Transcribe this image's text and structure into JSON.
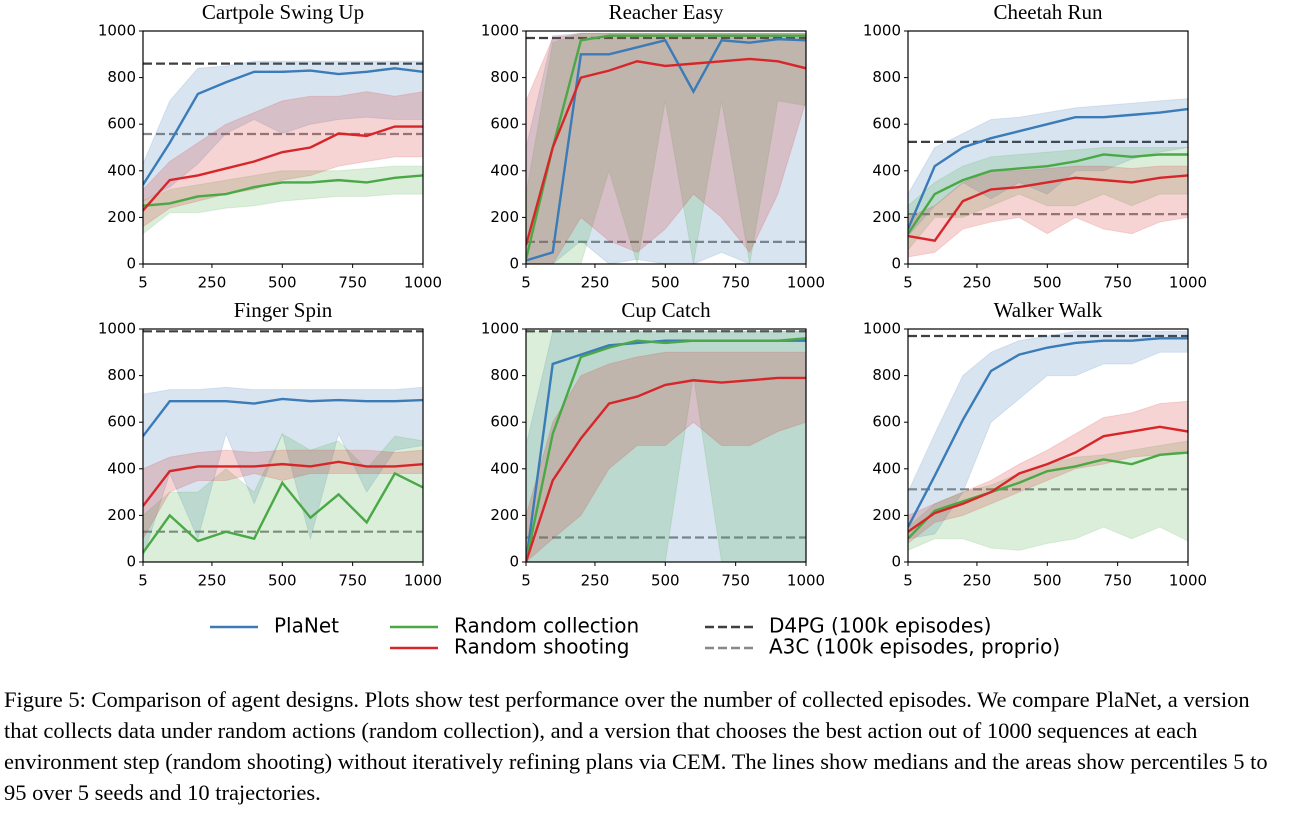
{
  "chart_data": [
    {
      "type": "line",
      "title": "Cartpole Swing Up",
      "x": [
        5,
        100,
        200,
        300,
        400,
        500,
        600,
        700,
        800,
        900,
        1000
      ],
      "xlim": [
        5,
        1000
      ],
      "ylim": [
        0,
        1000
      ],
      "xticks": [
        5,
        250,
        500,
        750,
        1000
      ],
      "yticks": [
        0,
        200,
        400,
        600,
        800,
        1000
      ],
      "series": [
        {
          "color": "#3a7bb8",
          "values": [
            340,
            520,
            730,
            780,
            825,
            825,
            830,
            815,
            825,
            840,
            825
          ],
          "lower": [
            270,
            330,
            430,
            560,
            620,
            560,
            600,
            620,
            630,
            620,
            620
          ],
          "upper": [
            430,
            700,
            840,
            850,
            870,
            870,
            870,
            870,
            870,
            870,
            870
          ]
        },
        {
          "color": "#4aa846",
          "values": [
            250,
            260,
            290,
            300,
            330,
            350,
            350,
            360,
            350,
            370,
            380
          ],
          "lower": [
            130,
            220,
            220,
            240,
            250,
            270,
            280,
            290,
            290,
            300,
            300
          ],
          "upper": [
            270,
            320,
            340,
            360,
            380,
            400,
            400,
            400,
            410,
            420,
            420
          ]
        },
        {
          "color": "#d7262a",
          "values": [
            230,
            360,
            380,
            410,
            440,
            480,
            500,
            560,
            550,
            590,
            590
          ],
          "lower": [
            160,
            240,
            270,
            300,
            320,
            360,
            380,
            420,
            440,
            460,
            460
          ],
          "upper": [
            320,
            440,
            520,
            600,
            650,
            700,
            720,
            720,
            740,
            720,
            740
          ]
        }
      ],
      "hlines": [
        {
          "value": 860,
          "color": "#3f3f3f"
        },
        {
          "value": 558,
          "color": "#888888"
        }
      ]
    },
    {
      "type": "line",
      "title": "Reacher Easy",
      "x": [
        5,
        100,
        200,
        300,
        400,
        500,
        600,
        700,
        800,
        900,
        1000
      ],
      "xlim": [
        5,
        1000
      ],
      "ylim": [
        0,
        1000
      ],
      "xticks": [
        5,
        250,
        500,
        750,
        1000
      ],
      "yticks": [
        0,
        200,
        400,
        600,
        800,
        1000
      ],
      "series": [
        {
          "color": "#3a7bb8",
          "values": [
            15,
            50,
            900,
            900,
            930,
            960,
            740,
            960,
            950,
            965,
            960
          ],
          "lower": [
            0,
            0,
            100,
            0,
            20,
            0,
            0,
            50,
            0,
            0,
            0
          ],
          "upper": [
            500,
            980,
            990,
            990,
            990,
            990,
            990,
            990,
            990,
            990,
            990
          ]
        },
        {
          "color": "#4aa846",
          "values": [
            20,
            500,
            960,
            980,
            980,
            980,
            980,
            980,
            980,
            980,
            980
          ],
          "lower": [
            0,
            0,
            0,
            400,
            0,
            700,
            0,
            700,
            0,
            700,
            680
          ],
          "upper": [
            300,
            950,
            990,
            990,
            990,
            990,
            990,
            990,
            990,
            990,
            990
          ]
        },
        {
          "color": "#d7262a",
          "values": [
            80,
            500,
            800,
            830,
            870,
            850,
            860,
            870,
            880,
            870,
            840
          ],
          "lower": [
            0,
            0,
            200,
            100,
            50,
            150,
            300,
            200,
            50,
            300,
            700
          ],
          "upper": [
            700,
            970,
            990,
            990,
            990,
            990,
            990,
            990,
            990,
            990,
            990
          ]
        }
      ],
      "hlines": [
        {
          "value": 970,
          "color": "#3f3f3f"
        },
        {
          "value": 95,
          "color": "#888888"
        }
      ]
    },
    {
      "type": "line",
      "title": "Cheetah Run",
      "x": [
        5,
        100,
        200,
        300,
        400,
        500,
        600,
        700,
        800,
        900,
        1000
      ],
      "xlim": [
        5,
        1000
      ],
      "ylim": [
        0,
        1000
      ],
      "xticks": [
        5,
        250,
        500,
        750,
        1000
      ],
      "yticks": [
        0,
        200,
        400,
        600,
        800,
        1000
      ],
      "series": [
        {
          "color": "#3a7bb8",
          "values": [
            150,
            420,
            500,
            540,
            570,
            600,
            630,
            630,
            640,
            650,
            665
          ],
          "lower": [
            120,
            250,
            350,
            280,
            350,
            300,
            400,
            400,
            450,
            480,
            500
          ],
          "upper": [
            300,
            500,
            560,
            620,
            630,
            650,
            670,
            680,
            690,
            700,
            710
          ]
        },
        {
          "color": "#4aa846",
          "values": [
            130,
            300,
            360,
            400,
            410,
            420,
            440,
            470,
            460,
            470,
            470
          ],
          "lower": [
            60,
            200,
            200,
            250,
            300,
            250,
            250,
            300,
            250,
            300,
            300
          ],
          "upper": [
            250,
            350,
            420,
            460,
            470,
            480,
            490,
            500,
            500,
            500,
            500
          ]
        },
        {
          "color": "#d7262a",
          "values": [
            120,
            100,
            270,
            320,
            330,
            350,
            370,
            360,
            350,
            370,
            380
          ],
          "lower": [
            30,
            50,
            150,
            180,
            200,
            130,
            200,
            150,
            130,
            180,
            200
          ],
          "upper": [
            200,
            250,
            350,
            400,
            400,
            410,
            420,
            420,
            410,
            420,
            420
          ]
        }
      ],
      "hlines": [
        {
          "value": 524,
          "color": "#3f3f3f"
        },
        {
          "value": 214,
          "color": "#888888"
        }
      ]
    },
    {
      "type": "line",
      "title": "Finger Spin",
      "x": [
        5,
        100,
        200,
        300,
        400,
        500,
        600,
        700,
        800,
        900,
        1000
      ],
      "xlim": [
        5,
        1000
      ],
      "ylim": [
        0,
        1000
      ],
      "xticks": [
        5,
        250,
        500,
        750,
        1000
      ],
      "yticks": [
        0,
        200,
        400,
        600,
        800,
        1000
      ],
      "series": [
        {
          "color": "#3a7bb8",
          "values": [
            540,
            690,
            690,
            690,
            680,
            700,
            690,
            695,
            690,
            690,
            695
          ],
          "lower": [
            20,
            380,
            100,
            550,
            250,
            550,
            100,
            550,
            300,
            480,
            500
          ],
          "upper": [
            720,
            740,
            740,
            750,
            740,
            740,
            740,
            740,
            740,
            740,
            750
          ]
        },
        {
          "color": "#4aa846",
          "values": [
            40,
            200,
            90,
            130,
            100,
            340,
            190,
            290,
            170,
            380,
            320
          ],
          "lower": [
            0,
            0,
            0,
            0,
            0,
            0,
            0,
            0,
            0,
            0,
            0
          ],
          "upper": [
            200,
            300,
            300,
            400,
            300,
            550,
            480,
            520,
            400,
            540,
            520
          ]
        },
        {
          "color": "#d7262a",
          "values": [
            240,
            390,
            410,
            410,
            410,
            420,
            410,
            430,
            410,
            410,
            420
          ],
          "lower": [
            100,
            300,
            350,
            350,
            380,
            350,
            380,
            380,
            380,
            380,
            380
          ],
          "upper": [
            400,
            450,
            470,
            480,
            470,
            480,
            480,
            480,
            480,
            470,
            480
          ]
        }
      ],
      "hlines": [
        {
          "value": 990,
          "color": "#3f3f3f"
        },
        {
          "value": 130,
          "color": "#888888"
        }
      ]
    },
    {
      "type": "line",
      "title": "Cup Catch",
      "x": [
        5,
        100,
        200,
        300,
        400,
        500,
        600,
        700,
        800,
        900,
        1000
      ],
      "xlim": [
        5,
        1000
      ],
      "ylim": [
        0,
        1000
      ],
      "xticks": [
        5,
        250,
        500,
        750,
        1000
      ],
      "yticks": [
        0,
        200,
        400,
        600,
        800,
        1000
      ],
      "series": [
        {
          "color": "#3a7bb8",
          "values": [
            0,
            850,
            890,
            930,
            940,
            950,
            950,
            950,
            950,
            950,
            950
          ],
          "lower": [
            0,
            0,
            0,
            0,
            0,
            0,
            0,
            0,
            0,
            0,
            0
          ],
          "upper": [
            500,
            990,
            990,
            990,
            990,
            990,
            990,
            990,
            990,
            990,
            990
          ]
        },
        {
          "color": "#4aa846",
          "values": [
            0,
            550,
            880,
            920,
            950,
            940,
            950,
            950,
            950,
            950,
            960
          ],
          "lower": [
            0,
            0,
            0,
            0,
            0,
            0,
            800,
            0,
            0,
            0,
            0
          ],
          "upper": [
            990,
            990,
            990,
            990,
            990,
            990,
            990,
            990,
            990,
            990,
            990
          ]
        },
        {
          "color": "#d7262a",
          "values": [
            0,
            350,
            530,
            680,
            710,
            760,
            780,
            770,
            780,
            790,
            790
          ],
          "lower": [
            0,
            100,
            200,
            400,
            500,
            500,
            600,
            500,
            500,
            560,
            600
          ],
          "upper": [
            200,
            600,
            800,
            850,
            880,
            900,
            900,
            900,
            900,
            900,
            900
          ]
        }
      ],
      "hlines": [
        {
          "value": 990,
          "color": "#3f3f3f"
        },
        {
          "value": 105,
          "color": "#888888"
        }
      ]
    },
    {
      "type": "line",
      "title": "Walker Walk",
      "x": [
        5,
        100,
        200,
        300,
        400,
        500,
        600,
        700,
        800,
        900,
        1000
      ],
      "xlim": [
        5,
        1000
      ],
      "ylim": [
        0,
        1000
      ],
      "xticks": [
        5,
        250,
        500,
        750,
        1000
      ],
      "yticks": [
        0,
        200,
        400,
        600,
        800,
        1000
      ],
      "series": [
        {
          "color": "#3a7bb8",
          "values": [
            150,
            370,
            610,
            820,
            890,
            920,
            940,
            950,
            950,
            960,
            960
          ],
          "lower": [
            100,
            120,
            300,
            600,
            700,
            800,
            800,
            850,
            850,
            900,
            900
          ],
          "upper": [
            300,
            550,
            800,
            900,
            950,
            970,
            990,
            990,
            990,
            990,
            990
          ]
        },
        {
          "color": "#4aa846",
          "values": [
            100,
            220,
            260,
            300,
            340,
            390,
            410,
            440,
            420,
            460,
            470
          ],
          "lower": [
            50,
            100,
            100,
            60,
            50,
            80,
            100,
            150,
            100,
            150,
            90
          ],
          "upper": [
            150,
            250,
            300,
            330,
            380,
            420,
            450,
            460,
            480,
            500,
            520
          ]
        },
        {
          "color": "#d7262a",
          "values": [
            130,
            210,
            250,
            300,
            380,
            420,
            470,
            540,
            560,
            580,
            560
          ],
          "lower": [
            80,
            170,
            200,
            250,
            300,
            350,
            400,
            420,
            450,
            460,
            480
          ],
          "upper": [
            200,
            250,
            300,
            350,
            420,
            480,
            550,
            620,
            640,
            680,
            690
          ]
        }
      ],
      "hlines": [
        {
          "value": 970,
          "color": "#3f3f3f"
        },
        {
          "value": 312,
          "color": "#888888"
        }
      ]
    }
  ],
  "legend": [
    {
      "label": "PlaNet",
      "color": "#3a7bb8",
      "dashed": false
    },
    {
      "label": "Random collection",
      "color": "#4aa846",
      "dashed": false
    },
    {
      "label": "Random shooting",
      "color": "#d7262a",
      "dashed": false
    },
    {
      "label": "D4PG (100k episodes)",
      "color": "#3f3f3f",
      "dashed": true
    },
    {
      "label": "A3C (100k episodes, proprio)",
      "color": "#888888",
      "dashed": true
    }
  ],
  "caption": "Figure 5: Comparison of agent designs. Plots show test performance over the number of collected episodes. We compare PlaNet, a version that collects data under random actions (random collection), and a version that chooses the best action out of 1000 sequences at each environment step (random shooting) without iteratively refining plans via CEM. The lines show medians and the areas show percentiles 5 to 95 over 5 seeds and 10 trajectories."
}
